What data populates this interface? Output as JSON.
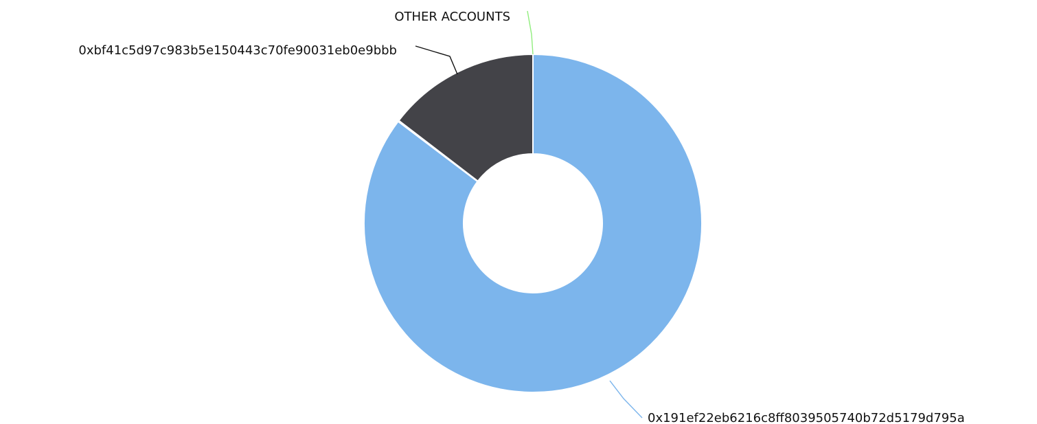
{
  "chart_data": {
    "type": "pie",
    "variant": "donut",
    "title": "",
    "slices": [
      {
        "label": "0x191ef22eb6216c8ff8039505740b72d5179d795a",
        "value": 85.3,
        "color": "#7cb5ec"
      },
      {
        "label": "OTHER ACCOUNTS",
        "value": 0.1,
        "color": "#90ed7d"
      },
      {
        "label": "0xbf41c5d97c983b5e150443c70fe90031eb0e9bbb",
        "value": 14.6,
        "color": "#434348"
      }
    ]
  }
}
